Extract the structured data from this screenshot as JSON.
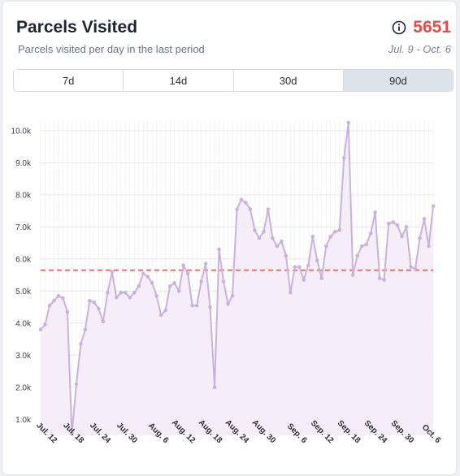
{
  "header": {
    "title": "Parcels Visited",
    "subtitle": "Parcels visited per day in the last period",
    "total": "5651",
    "date_range": "Jul. 9 - Oct. 6",
    "info_icon": "info-circle-icon"
  },
  "tabs": [
    {
      "label": "7d",
      "active": false
    },
    {
      "label": "14d",
      "active": false
    },
    {
      "label": "30d",
      "active": false
    },
    {
      "label": "90d",
      "active": true
    }
  ],
  "colors": {
    "accent": "#e74a4a",
    "line": "#c9b3dc",
    "fill": "#f4ecf8",
    "average_line": "#e05a5a",
    "grid": "#ececec",
    "active_tab": "#dde3ea"
  },
  "chart_data": {
    "type": "line",
    "title": "",
    "xlabel": "",
    "ylabel": "",
    "ylim": [
      500,
      10300
    ],
    "yticks": [
      1000,
      2000,
      3000,
      4000,
      5000,
      6000,
      7000,
      8000,
      9000,
      10000
    ],
    "ytick_labels": [
      "1.0k",
      "2.0k",
      "3.0k",
      "4.0k",
      "5.0k",
      "6.0k",
      "7.0k",
      "8.0k",
      "9.0k",
      "10.0k"
    ],
    "xtick_labels": [
      "Jul. 12",
      "Jul. 18",
      "Jul. 24",
      "Jul. 30",
      "Aug. 6",
      "Aug. 12",
      "Aug. 18",
      "Aug. 24",
      "Aug. 30",
      "Sep. 6",
      "Sep. 12",
      "Sep. 18",
      "Sep. 24",
      "Sep. 30",
      "Oct. 6"
    ],
    "xtick_index": [
      3,
      9,
      15,
      21,
      28,
      34,
      40,
      46,
      52,
      59,
      65,
      71,
      77,
      83,
      89
    ],
    "average": 5651,
    "grid": true,
    "series": [
      {
        "values": [
          3800,
          3950,
          4550,
          4700,
          4850,
          4780,
          4350,
          550,
          2100,
          3350,
          3800,
          4700,
          4650,
          4450,
          4050,
          4950,
          5600,
          4800,
          4950,
          4950,
          4800,
          4950,
          5150,
          5550,
          5450,
          5250,
          4850,
          4250,
          4400,
          5150,
          5250,
          5000,
          5800,
          5550,
          4550,
          4550,
          5300,
          5850,
          4500,
          2000,
          6300,
          5300,
          4600,
          4850,
          7550,
          7850,
          7750,
          7550,
          6900,
          6650,
          6850,
          7550,
          6650,
          6400,
          6550,
          6100,
          4950,
          5750,
          5750,
          5350,
          5800,
          6700,
          5950,
          5400,
          6400,
          6700,
          6850,
          6900,
          9150,
          10250,
          5500,
          6100,
          6400,
          6450,
          6800,
          7450,
          5400,
          5350,
          7100,
          7150,
          7050,
          6700,
          7000,
          5750,
          5700,
          6650,
          7250,
          6400,
          7650
        ]
      }
    ]
  }
}
